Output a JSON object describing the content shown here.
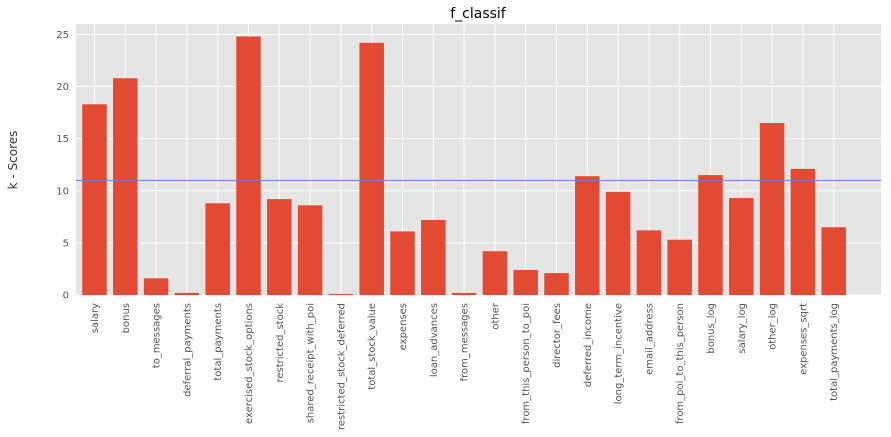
{
  "chart_data": {
    "type": "bar",
    "title": "f_classif",
    "xlabel": "",
    "ylabel": "k - Scores",
    "ylim": [
      0,
      26
    ],
    "yticks": [
      0,
      5,
      10,
      15,
      20,
      25
    ],
    "grid": true,
    "threshold_line": 11.0,
    "categories": [
      "salary",
      "bonus",
      "to_messages",
      "deferral_payments",
      "total_payments",
      "exercised_stock_options",
      "restricted_stock",
      "shared_receipt_with_poi",
      "restricted_stock_deferred",
      "total_stock_value",
      "expenses",
      "loan_advances",
      "from_messages",
      "other",
      "from_this_person_to_poi",
      "director_fees",
      "deferred_income",
      "long_term_incentive",
      "email_address",
      "from_poi_to_this_person",
      "bonus_log",
      "salary_log",
      "other_log",
      "expenses_sqrt",
      "total_payments_log"
    ],
    "values": [
      18.3,
      20.8,
      1.6,
      0.2,
      8.8,
      24.8,
      9.2,
      8.6,
      0.1,
      24.2,
      6.1,
      7.2,
      0.2,
      4.2,
      2.4,
      2.1,
      11.4,
      9.9,
      6.2,
      5.3,
      11.5,
      9.3,
      16.5,
      12.1,
      6.5
    ],
    "colors": {
      "bar": "#E24A33",
      "threshold": "#7777ee",
      "panel": "#E5E5E5",
      "grid": "#ffffff"
    }
  }
}
